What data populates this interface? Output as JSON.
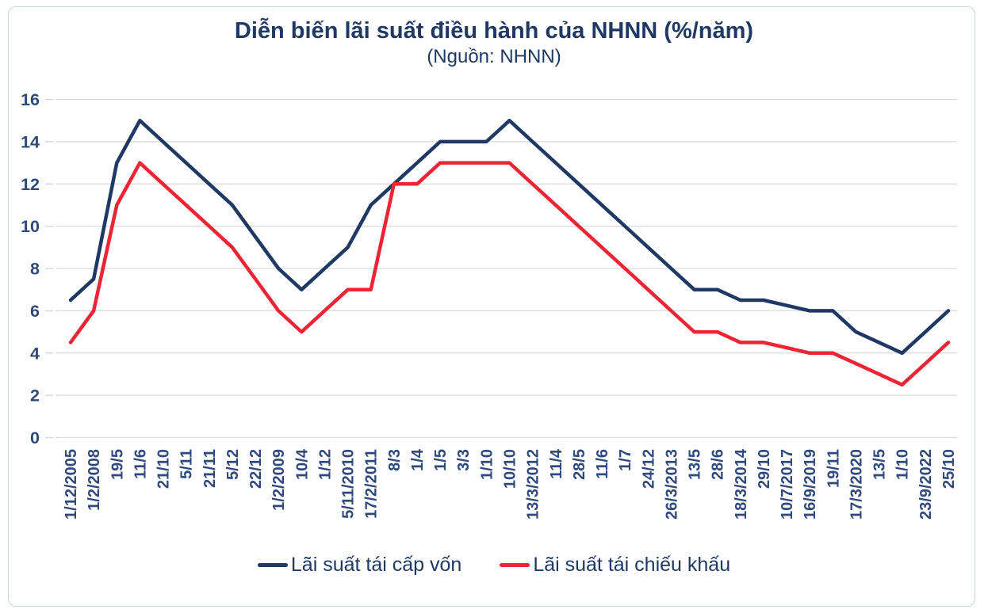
{
  "figure": {
    "title": "Diễn biến lãi suất điều hành của NHNN (%/năm)",
    "subtitle": "(Nguồn: NHNN)"
  },
  "chart_data": {
    "type": "line",
    "title": "Diễn biến lãi suất điều hành của NHNN (%/năm)",
    "subtitle": "(Nguồn: NHNN)",
    "categories": [
      "1/12/2005",
      "1/2/2008",
      "19/5",
      "11/6",
      "21/10",
      "5/11",
      "21/11",
      "5/12",
      "22/12",
      "1/2/2009",
      "10/4",
      "1/12",
      "5/11/2010",
      "17/2/2011",
      "8/3",
      "1/4",
      "1/5",
      "3/3",
      "1/10",
      "10/10",
      "13/3/2012",
      "11/4",
      "28/5",
      "11/6",
      "1/7",
      "24/12",
      "26/3/2013",
      "13/5",
      "28/6",
      "18/3/2014",
      "29/10",
      "10/7/2017",
      "16/9/2019",
      "19/11",
      "17/3/2020",
      "13/5",
      "1/10",
      "23/9/2022",
      "25/10"
    ],
    "series": [
      {
        "name": "Lãi suất tái cấp vốn",
        "color": "#1f3864",
        "values": [
          6.5,
          7.5,
          13,
          15,
          14,
          13,
          12,
          11,
          9.5,
          8,
          7,
          8,
          9,
          11,
          12,
          13,
          14,
          14,
          14,
          15,
          14,
          13,
          12,
          11,
          10,
          9,
          8,
          7,
          7,
          6.5,
          6.5,
          6.25,
          6,
          6,
          5,
          4.5,
          4,
          5,
          6
        ]
      },
      {
        "name": "Lãi suất tái chiếu khấu",
        "color": "#ec2434",
        "values": [
          4.5,
          6,
          11,
          13,
          12,
          11,
          10,
          9,
          7.5,
          6,
          5,
          6,
          7,
          7,
          12,
          12,
          13,
          13,
          13,
          13,
          12,
          11,
          10,
          9,
          8,
          7,
          6,
          5,
          5,
          4.5,
          4.5,
          4.25,
          4,
          4,
          3.5,
          3,
          2.5,
          3.5,
          4.5
        ]
      }
    ],
    "ylim": [
      0,
      16
    ],
    "ytick_step": 2,
    "yticks": [
      0,
      2,
      4,
      6,
      8,
      10,
      12,
      14,
      16
    ],
    "grid": "horizontal",
    "gridline_color": "#d9d9d9",
    "tick_label_color": "#30497c",
    "legend_position": "bottom",
    "x_label_rotation": -90
  }
}
